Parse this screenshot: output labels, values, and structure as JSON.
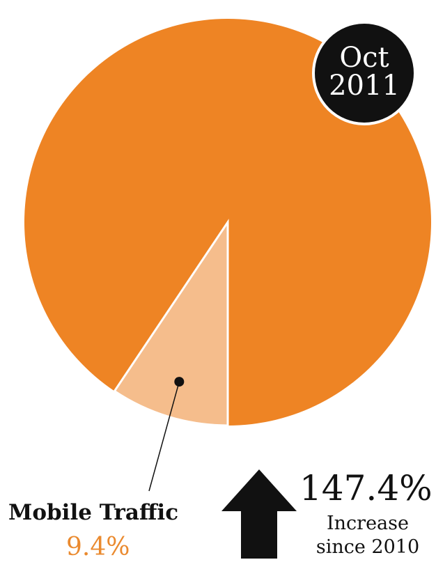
{
  "chart_data": {
    "type": "pie",
    "slices": [
      {
        "label": "Mobile Traffic",
        "value": 9.4,
        "color": "#f5bd8c"
      },
      {
        "label": "",
        "value": 90.6,
        "color": "#ee8424"
      }
    ],
    "period_line1": "Oct",
    "period_line2": "2011",
    "mobile_label": "Mobile Traffic",
    "mobile_value": "9.4%",
    "increase_value": "147.4%",
    "increase_line1": "Increase",
    "increase_line2": "since 2010",
    "colors": {
      "main": "#ee8424",
      "highlight": "#f5bd8c",
      "value_text": "#ea8a2f",
      "badge": "#111111"
    }
  }
}
